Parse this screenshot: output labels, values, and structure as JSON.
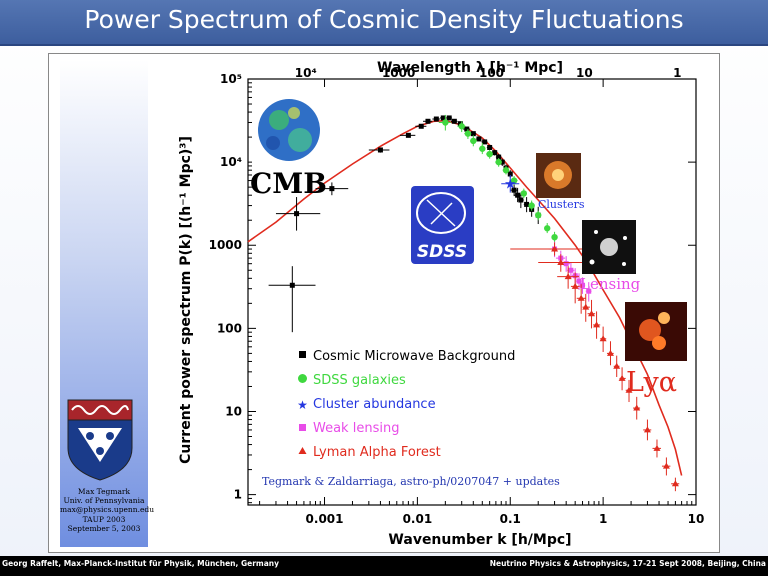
{
  "slide": {
    "title": "Power Spectrum of Cosmic Density Fluctuations",
    "footer_left": "Georg Raffelt, Max-Planck-Institut für Physik, München, Germany",
    "footer_right": "Neutrino Physics & Astrophysics, 17-21 Sept 2008, Beijing, China",
    "credit": [
      "Max Tegmark",
      "Univ. of Pennsylvania",
      "max@physics.upenn.edu",
      "TAUP 2003",
      "September 5, 2003"
    ]
  },
  "chart_data": {
    "type": "scatter",
    "xlabel": "Wavenumber k [h/Mpc]",
    "ylabel": "Current power spectrum P(k) [(h⁻¹ Mpc)³]",
    "top_axis_label": "Wavelength λ [h⁻¹ Mpc]",
    "x_scale": "log",
    "y_scale": "log",
    "xlim": [
      0.00015,
      10
    ],
    "ylim": [
      0.75,
      100000
    ],
    "x_ticks": [
      "0.001",
      "0.01",
      "0.1",
      "1",
      "10"
    ],
    "x_tick_values": [
      0.001,
      0.01,
      0.1,
      1,
      10
    ],
    "y_ticks": [
      "1",
      "10",
      "100",
      "1000",
      "10⁴",
      "10⁵"
    ],
    "y_tick_values": [
      1,
      10,
      100,
      1000,
      10000,
      100000
    ],
    "top_ticks": [
      "10⁴",
      "1000",
      "100",
      "10",
      "1"
    ],
    "top_tick_values": [
      10000,
      1000,
      100,
      10,
      1
    ],
    "grid": false,
    "legend": "center-right",
    "model_curve": {
      "color": "#e02b1e",
      "k": [
        0.00015,
        0.0003,
        0.0006,
        0.001,
        0.002,
        0.004,
        0.007,
        0.01,
        0.015,
        0.02,
        0.03,
        0.05,
        0.07,
        0.1,
        0.15,
        0.2,
        0.3,
        0.5,
        0.7,
        1,
        1.5,
        2,
        3,
        4,
        5,
        6,
        7
      ],
      "pk": [
        1100,
        1900,
        3600,
        5600,
        9500,
        15500,
        22000,
        27000,
        31000,
        31500,
        28000,
        19500,
        13500,
        8500,
        5000,
        3500,
        2100,
        1000,
        580,
        290,
        135,
        70,
        28,
        12,
        6.5,
        3.5,
        1.7
      ]
    },
    "series": [
      {
        "name": "Cosmic Microwave Background",
        "marker": "square",
        "color": "#000000",
        "points": [
          {
            "k": 0.00045,
            "pk": 330,
            "kerr": [
              0.00025,
              0.0008
            ],
            "pkerr": [
              90,
              560
            ]
          },
          {
            "k": 0.0005,
            "pk": 2400,
            "kerr": [
              0.0003,
              0.0009
            ],
            "pkerr": [
              1500,
              3800
            ]
          },
          {
            "k": 0.0012,
            "pk": 4800,
            "kerr": [
              0.0008,
              0.0018
            ],
            "pkerr": [
              4000,
              5700
            ]
          },
          {
            "k": 0.004,
            "pk": 14000,
            "kerr": [
              0.003,
              0.005
            ],
            "pkerr": [
              13000,
              15000
            ]
          },
          {
            "k": 0.008,
            "pk": 21000,
            "kerr": [
              0.0065,
              0.0095
            ],
            "pkerr": [
              20000,
              22000
            ]
          },
          {
            "k": 0.011,
            "pk": 27000,
            "kerr": [
              0.0095,
              0.0125
            ],
            "pkerr": [
              26000,
              28000
            ]
          },
          {
            "k": 0.013,
            "pk": 31000,
            "kerr": [
              0.0115,
              0.0145
            ],
            "pkerr": [
              30000,
              32000
            ]
          },
          {
            "k": 0.016,
            "pk": 33000,
            "kerr": [
              0.0145,
              0.0175
            ],
            "pkerr": [
              32000,
              34000
            ]
          },
          {
            "k": 0.019,
            "pk": 34000,
            "kerr": [
              0.0175,
              0.0205
            ],
            "pkerr": [
              33000,
              35000
            ]
          },
          {
            "k": 0.022,
            "pk": 34000,
            "kerr": [
              0.0205,
              0.0235
            ],
            "pkerr": [
              33000,
              35000
            ]
          },
          {
            "k": 0.025,
            "pk": 31000,
            "kerr": [
              0.023,
              0.027
            ],
            "pkerr": [
              30000,
              32000
            ]
          },
          {
            "k": 0.029,
            "pk": 29000,
            "kerr": [
              0.027,
              0.031
            ],
            "pkerr": [
              28000,
              30000
            ]
          },
          {
            "k": 0.034,
            "pk": 25000,
            "kerr": [
              0.031,
              0.037
            ],
            "pkerr": [
              24000,
              26500
            ]
          },
          {
            "k": 0.04,
            "pk": 22000,
            "kerr": [
              0.037,
              0.043
            ],
            "pkerr": [
              21000,
              23000
            ]
          },
          {
            "k": 0.046,
            "pk": 19000,
            "kerr": [
              0.043,
              0.049
            ],
            "pkerr": [
              18000,
              20000
            ]
          },
          {
            "k": 0.053,
            "pk": 17500,
            "kerr": [
              0.049,
              0.057
            ],
            "pkerr": [
              16500,
              18500
            ]
          },
          {
            "k": 0.06,
            "pk": 15000,
            "kerr": [
              0.056,
              0.064
            ],
            "pkerr": [
              14000,
              16000
            ]
          },
          {
            "k": 0.068,
            "pk": 13000,
            "kerr": [
              0.064,
              0.072
            ],
            "pkerr": [
              12000,
              14000
            ]
          },
          {
            "k": 0.075,
            "pk": 11500,
            "kerr": [
              0.07,
              0.08
            ],
            "pkerr": [
              10500,
              12500
            ]
          },
          {
            "k": 0.082,
            "pk": 10000,
            "kerr": [
              0.077,
              0.087
            ],
            "pkerr": [
              9000,
              11000
            ]
          },
          {
            "k": 0.09,
            "pk": 8500,
            "kerr": [
              0.085,
              0.095
            ],
            "pkerr": [
              7800,
              9300
            ]
          },
          {
            "k": 0.1,
            "pk": 7200,
            "kerr": [
              0.095,
              0.105
            ],
            "pkerr": [
              6500,
              8000
            ]
          },
          {
            "k": 0.11,
            "pk": 4600,
            "kerr": [
              0.1,
              0.12
            ],
            "pkerr": [
              3900,
              5400
            ]
          },
          {
            "k": 0.12,
            "pk": 4000,
            "kerr": [
              0.11,
              0.13
            ],
            "pkerr": [
              3300,
              4900
            ]
          },
          {
            "k": 0.13,
            "pk": 3500,
            "kerr": [
              0.12,
              0.14
            ],
            "pkerr": [
              2800,
              4300
            ]
          },
          {
            "k": 0.15,
            "pk": 3100,
            "kerr": [
              0.14,
              0.16
            ],
            "pkerr": [
              2500,
              3800
            ]
          },
          {
            "k": 0.17,
            "pk": 2700,
            "kerr": [
              0.16,
              0.18
            ],
            "pkerr": [
              2200,
              3300
            ]
          },
          {
            "k": 0.2,
            "pk": 2300,
            "kerr": [
              0.19,
              0.21
            ],
            "pkerr": [
              1800,
              2900
            ]
          }
        ]
      },
      {
        "name": "SDSS galaxies",
        "marker": "circle",
        "color": "#3fd83f",
        "points": [
          {
            "k": 0.02,
            "pk": 30000,
            "kerr": [
              0.017,
              0.023
            ],
            "pkerr": [
              24000,
              37000
            ]
          },
          {
            "k": 0.03,
            "pk": 27000,
            "kerr": [
              0.027,
              0.033
            ],
            "pkerr": [
              23000,
              31000
            ]
          },
          {
            "k": 0.035,
            "pk": 22000,
            "kerr": [
              0.032,
              0.038
            ],
            "pkerr": [
              19000,
              25000
            ]
          },
          {
            "k": 0.04,
            "pk": 18000,
            "kerr": [
              0.037,
              0.044
            ],
            "pkerr": [
              15500,
              21000
            ]
          },
          {
            "k": 0.05,
            "pk": 14500,
            "kerr": [
              0.046,
              0.054
            ],
            "pkerr": [
              12500,
              17000
            ]
          },
          {
            "k": 0.06,
            "pk": 12500,
            "kerr": [
              0.055,
              0.065
            ],
            "pkerr": [
              11000,
              14000
            ]
          },
          {
            "k": 0.075,
            "pk": 10000,
            "kerr": [
              0.069,
              0.081
            ],
            "pkerr": [
              8800,
              11200
            ]
          },
          {
            "k": 0.09,
            "pk": 8000,
            "kerr": [
              0.083,
              0.097
            ],
            "pkerr": [
              7100,
              9000
            ]
          },
          {
            "k": 0.11,
            "pk": 6000,
            "kerr": [
              0.1,
              0.12
            ],
            "pkerr": [
              5300,
              6800
            ]
          },
          {
            "k": 0.14,
            "pk": 4200,
            "kerr": [
              0.13,
              0.15
            ],
            "pkerr": [
              3700,
              4800
            ]
          },
          {
            "k": 0.17,
            "pk": 3000,
            "kerr": [
              0.16,
              0.18
            ],
            "pkerr": [
              2600,
              3450
            ]
          },
          {
            "k": 0.2,
            "pk": 2300,
            "kerr": [
              0.19,
              0.21
            ],
            "pkerr": [
              2000,
              2600
            ]
          },
          {
            "k": 0.25,
            "pk": 1600,
            "kerr": [
              0.235,
              0.265
            ],
            "pkerr": [
              1400,
              1850
            ]
          },
          {
            "k": 0.3,
            "pk": 1250,
            "kerr": [
              0.28,
              0.32
            ],
            "pkerr": [
              1080,
              1450
            ]
          }
        ]
      },
      {
        "name": "Cluster abundance",
        "marker": "star",
        "color": "#2437e0",
        "points": [
          {
            "k": 0.1,
            "pk": 5500,
            "kerr": [
              0.08,
              0.125
            ],
            "pkerr": [
              4300,
              7000
            ]
          }
        ]
      },
      {
        "name": "Weak lensing",
        "marker": "square",
        "color": "#e84ce8",
        "points": [
          {
            "k": 0.3,
            "pk": 900,
            "kerr": [
              0.26,
              0.34
            ],
            "pkerr": [
              720,
              1100
            ]
          },
          {
            "k": 0.35,
            "pk": 700,
            "kerr": [
              0.31,
              0.39
            ],
            "pkerr": [
              560,
              860
            ]
          },
          {
            "k": 0.4,
            "pk": 600,
            "kerr": [
              0.36,
              0.44
            ],
            "pkerr": [
              480,
              740
            ]
          },
          {
            "k": 0.45,
            "pk": 500,
            "kerr": [
              0.41,
              0.49
            ],
            "pkerr": [
              400,
              620
            ]
          },
          {
            "k": 0.5,
            "pk": 430,
            "kerr": [
              0.46,
              0.54
            ],
            "pkerr": [
              340,
              530
            ]
          },
          {
            "k": 0.55,
            "pk": 370,
            "kerr": [
              0.51,
              0.59
            ],
            "pkerr": [
              290,
              460
            ]
          },
          {
            "k": 0.6,
            "pk": 330,
            "kerr": [
              0.56,
              0.64
            ],
            "pkerr": [
              260,
              410
            ]
          },
          {
            "k": 0.7,
            "pk": 280,
            "kerr": [
              0.65,
              0.75
            ],
            "pkerr": [
              210,
              360
            ]
          }
        ]
      },
      {
        "name": "Lyman Alpha Forest",
        "marker": "triangle",
        "color": "#e02b1e",
        "points": [
          {
            "k": 0.3,
            "pk": 900,
            "kerr": [
              0.1,
              0.8
            ],
            "pkerr": [
              750,
              1080
            ]
          },
          {
            "k": 0.35,
            "pk": 620,
            "kerr": [
              0.2,
              0.6
            ],
            "pkerr": [
              480,
              780
            ]
          },
          {
            "k": 0.42,
            "pk": 420,
            "kerr": [
              0.32,
              0.55
            ],
            "pkerr": [
              300,
              560
            ]
          },
          {
            "k": 0.5,
            "pk": 320,
            "kerr": [
              0.45,
              0.56
            ],
            "pkerr": [
              200,
              470
            ]
          },
          {
            "k": 0.58,
            "pk": 230,
            "kerr": [
              0.52,
              0.65
            ],
            "pkerr": [
              150,
              340
            ]
          },
          {
            "k": 0.65,
            "pk": 180,
            "kerr": [
              0.6,
              0.72
            ],
            "pkerr": [
              120,
              260
            ]
          },
          {
            "k": 0.75,
            "pk": 150,
            "kerr": [
              0.68,
              0.82
            ],
            "pkerr": [
              100,
              220
            ]
          },
          {
            "k": 0.85,
            "pk": 110,
            "kerr": [
              0.78,
              0.93
            ],
            "pkerr": [
              75,
              160
            ]
          },
          {
            "k": 1.0,
            "pk": 75,
            "kerr": [
              0.93,
              1.08
            ],
            "pkerr": [
              52,
              105
            ]
          },
          {
            "k": 1.2,
            "pk": 50,
            "kerr": [
              1.1,
              1.3
            ],
            "pkerr": [
              36,
              70
            ]
          },
          {
            "k": 1.4,
            "pk": 35,
            "kerr": [
              1.3,
              1.5
            ],
            "pkerr": [
              26,
              47
            ]
          },
          {
            "k": 1.6,
            "pk": 25,
            "kerr": [
              1.5,
              1.75
            ],
            "pkerr": [
              18,
              34
            ]
          },
          {
            "k": 1.9,
            "pk": 18,
            "kerr": [
              1.75,
              2.05
            ],
            "pkerr": [
              13,
              24
            ]
          },
          {
            "k": 2.3,
            "pk": 11,
            "kerr": [
              2.1,
              2.5
            ],
            "pkerr": [
              8,
              15
            ]
          },
          {
            "k": 3.0,
            "pk": 6,
            "kerr": [
              2.7,
              3.3
            ],
            "pkerr": [
              4.5,
              8
            ]
          },
          {
            "k": 3.8,
            "pk": 3.6,
            "kerr": [
              3.4,
              4.2
            ],
            "pkerr": [
              2.8,
              4.6
            ]
          },
          {
            "k": 4.8,
            "pk": 2.2,
            "kerr": [
              4.3,
              5.3
            ],
            "pkerr": [
              1.7,
              2.8
            ]
          },
          {
            "k": 6.0,
            "pk": 1.35,
            "kerr": [
              5.4,
              6.6
            ],
            "pkerr": [
              1.1,
              1.6
            ]
          }
        ]
      }
    ],
    "image_labels": {
      "cmb": "CMB",
      "sdss": "SDSS",
      "clusters": "Clusters",
      "lensing": "Lensing",
      "lya": "Lyα"
    },
    "annotation": "Tegmark & Zaldarriaga, astro-ph/0207047 + updates"
  }
}
